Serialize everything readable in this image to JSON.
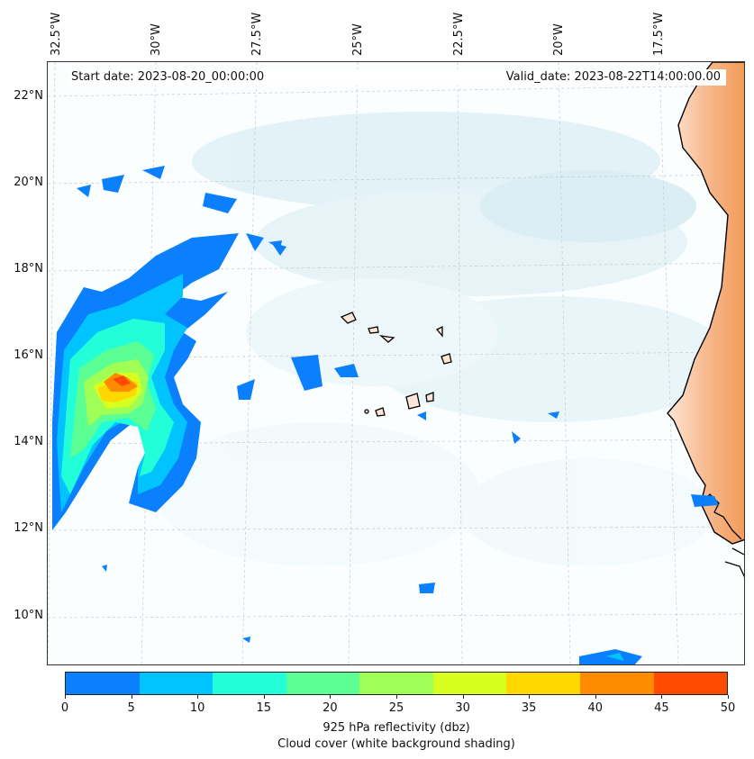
{
  "header": {
    "start_date": "Start date: 2023-08-20_00:00:00",
    "valid_date": "Valid_date: 2023-08-22T14:00:00.00"
  },
  "lon_labels": [
    "32.5°W",
    "30°W",
    "27.5°W",
    "25°W",
    "22.5°W",
    "20°W",
    "17.5°W"
  ],
  "lat_labels": [
    "22°N",
    "20°N",
    "18°N",
    "16°N",
    "14°N",
    "12°N",
    "10°N"
  ],
  "colorbar": {
    "ticks": [
      "0",
      "5",
      "10",
      "15",
      "20",
      "25",
      "30",
      "35",
      "40",
      "45",
      "50"
    ],
    "colors": [
      "#0a80ff",
      "#00c3ff",
      "#22ffd8",
      "#5cff93",
      "#a0ff55",
      "#d9ff20",
      "#ffd800",
      "#ff8c00",
      "#ff4a00"
    ],
    "label": "925 hPa reflectivity (dbz)",
    "sublabel": "Cloud cover (white background shading)"
  },
  "map": {
    "land_color": "#f4a460",
    "cloud_color": "#b9dde8",
    "coast_color": "#000000"
  }
}
